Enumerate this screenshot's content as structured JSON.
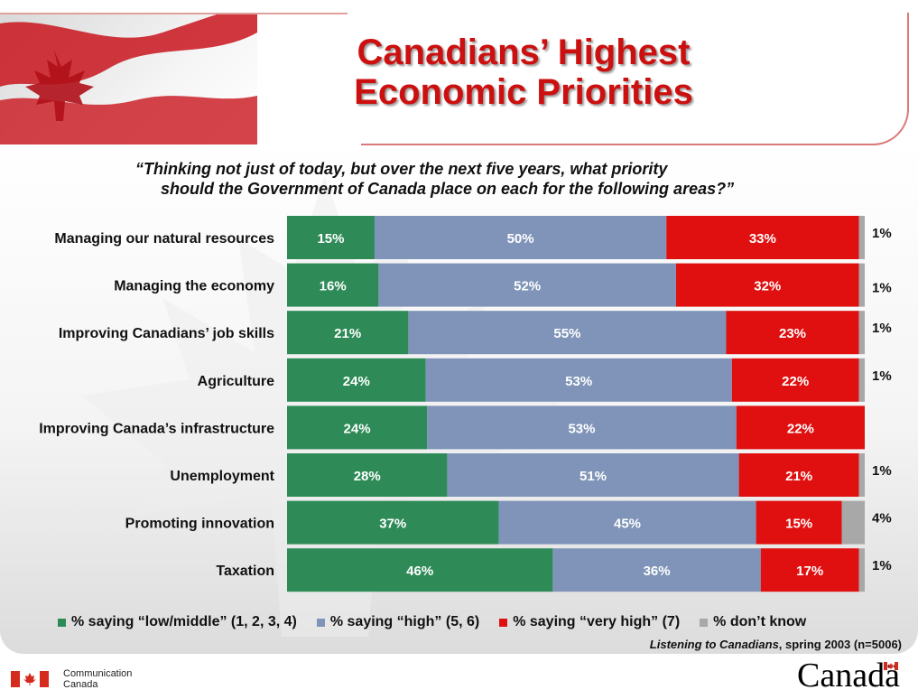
{
  "slide": {
    "title_line1": "Canadians’ Highest",
    "title_line2": "Economic Priorities",
    "question_line1": "“Thinking not just of today, but over the next five years, what priority",
    "question_line2": "should the Government of Canada place on each for the following areas?”",
    "source_italic": "Listening to Canadians",
    "source_rest": ", spring 2003 (n=5006)",
    "footer_org_line1": "Communication",
    "footer_org_line2": "Canada",
    "wordmark": "Canadä",
    "colors": {
      "title_red": "#cc1010",
      "low_green": "#2e8b57",
      "high_blue": "#7f94b8",
      "very_high_red": "#e01010",
      "dont_know_gray": "#a8a8a8"
    }
  },
  "chart_data": {
    "type": "bar",
    "orientation": "horizontal",
    "stacked": true,
    "categories": [
      "Managing our natural resources",
      "Managing the economy",
      "Improving Canadians’ job skills",
      "Agriculture",
      "Improving Canada’s infrastructure",
      "Unemployment",
      "Promoting innovation",
      "Taxation"
    ],
    "series": [
      {
        "name": "% saying “low/middle” (1, 2, 3, 4)",
        "color": "#2e8b57",
        "values": [
          15,
          16,
          21,
          24,
          24,
          28,
          37,
          46
        ]
      },
      {
        "name": "% saying “high” (5, 6)",
        "color": "#7f94b8",
        "values": [
          50,
          52,
          55,
          53,
          53,
          51,
          45,
          36
        ]
      },
      {
        "name": "% saying “very high” (7)",
        "color": "#e01010",
        "values": [
          33,
          32,
          23,
          22,
          22,
          21,
          15,
          17
        ]
      },
      {
        "name": "% don’t know",
        "color": "#a8a8a8",
        "values": [
          1,
          1,
          1,
          1,
          0,
          1,
          4,
          1
        ]
      }
    ],
    "labels": [
      [
        "15%",
        "50%",
        "33%",
        "1%"
      ],
      [
        "16%",
        "52%",
        "32%",
        "1%"
      ],
      [
        "21%",
        "55%",
        "23%",
        "1%"
      ],
      [
        "24%",
        "53%",
        "22%",
        "1%"
      ],
      [
        "24%",
        "53%",
        "22%",
        ""
      ],
      [
        "28%",
        "51%",
        "21%",
        "1%"
      ],
      [
        "37%",
        "45%",
        "15%",
        "4%"
      ],
      [
        "46%",
        "36%",
        "17%",
        "1%"
      ]
    ],
    "xlim": [
      0,
      100
    ],
    "unit": "%",
    "legend_position": "bottom"
  }
}
